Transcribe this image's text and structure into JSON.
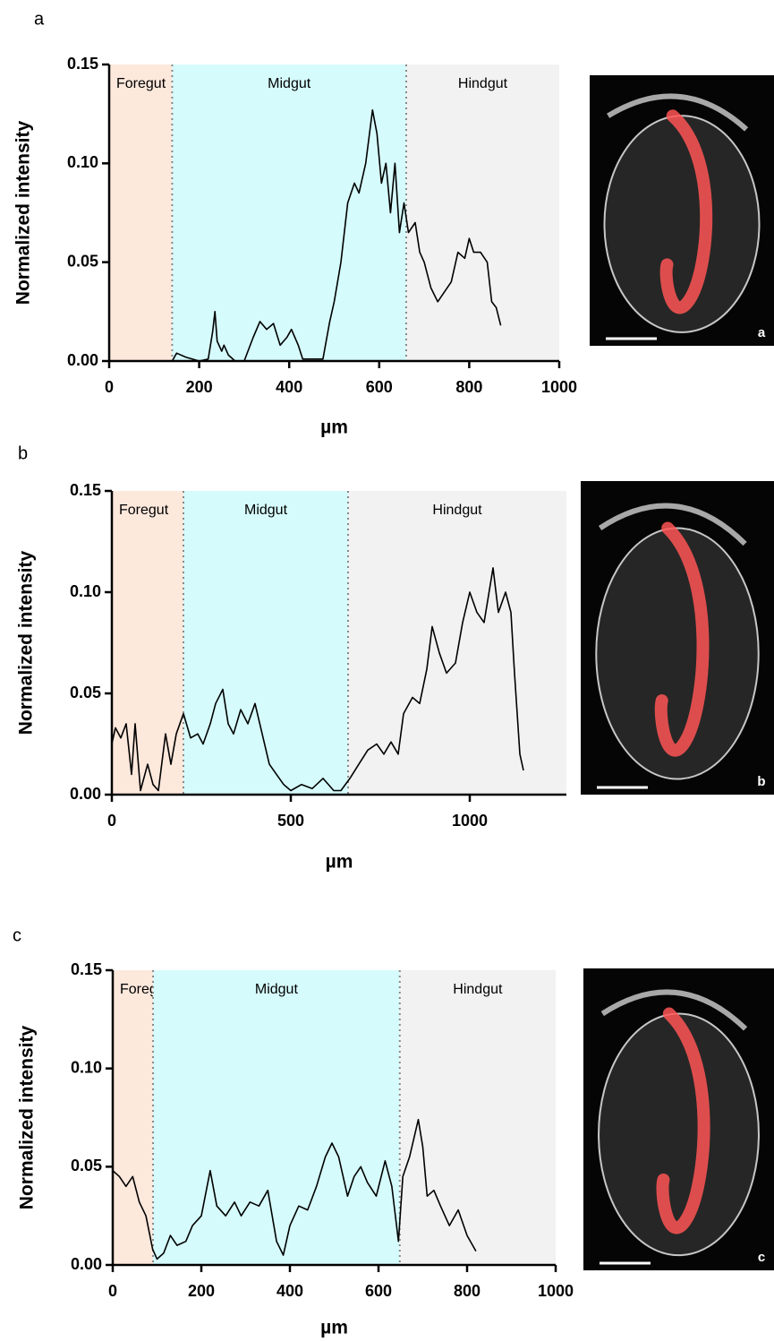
{
  "chart_data": [
    {
      "type": "line",
      "panel_label": "a",
      "image_label": "a",
      "y_label": "Normalized intensity",
      "x_label": "µm",
      "color": "#000000",
      "regions": [
        {
          "label": "Foregut",
          "start": 0,
          "end": 140,
          "color": "#fde8dc"
        },
        {
          "label": "Midgut",
          "start": 140,
          "end": 660,
          "color": "#d6fbfc"
        },
        {
          "label": "Hindgut",
          "start": 660,
          "end": 1000,
          "color": "#f2f2f2"
        }
      ],
      "xlim": [
        0,
        1000
      ],
      "xticks": [
        0,
        200,
        400,
        600,
        800,
        1000
      ],
      "ylim": [
        0,
        0.15
      ],
      "yticks": [
        {
          "value": 0,
          "label": "0.00"
        },
        {
          "value": 0.05,
          "label": "0.05"
        },
        {
          "value": 0.1,
          "label": "0.10"
        },
        {
          "value": 0.15,
          "label": "0.15"
        }
      ],
      "x": [
        140,
        150,
        170,
        200,
        220,
        230,
        235,
        240,
        250,
        255,
        265,
        280,
        300,
        320,
        335,
        350,
        365,
        380,
        395,
        405,
        420,
        430,
        460,
        475,
        490,
        500,
        515,
        530,
        545,
        555,
        570,
        585,
        595,
        605,
        615,
        625,
        635,
        645,
        655,
        665,
        680,
        690,
        700,
        715,
        730,
        745,
        760,
        775,
        790,
        800,
        810,
        825,
        840,
        850,
        860,
        870
      ],
      "values": [
        0,
        0.004,
        0.002,
        0,
        0.001,
        0.015,
        0.025,
        0.01,
        0.005,
        0.008,
        0.003,
        0,
        0,
        0.012,
        0.02,
        0.016,
        0.019,
        0.008,
        0.012,
        0.016,
        0.008,
        0.001,
        0.001,
        0.001,
        0.02,
        0.03,
        0.05,
        0.08,
        0.09,
        0.085,
        0.1,
        0.127,
        0.115,
        0.09,
        0.1,
        0.075,
        0.1,
        0.065,
        0.08,
        0.065,
        0.07,
        0.055,
        0.05,
        0.037,
        0.03,
        0.035,
        0.04,
        0.055,
        0.052,
        0.062,
        0.055,
        0.055,
        0.05,
        0.03,
        0.027,
        0.018
      ]
    },
    {
      "type": "line",
      "panel_label": "b",
      "image_label": "b",
      "y_label": "Normalized intensity",
      "x_label": "µm",
      "color": "#000000",
      "regions": [
        {
          "label": "Foregut",
          "start": 0,
          "end": 200,
          "color": "#fde8dc"
        },
        {
          "label": "Midgut",
          "start": 200,
          "end": 660,
          "color": "#d6fbfc"
        },
        {
          "label": "Hindgut",
          "start": 660,
          "end": 1270,
          "color": "#f2f2f2"
        }
      ],
      "xlim": [
        0,
        1270
      ],
      "xticks": [
        0,
        500,
        1000
      ],
      "ylim": [
        0,
        0.15
      ],
      "yticks": [
        {
          "value": 0,
          "label": "0.00"
        },
        {
          "value": 0.05,
          "label": "0.05"
        },
        {
          "value": 0.1,
          "label": "0.10"
        },
        {
          "value": 0.15,
          "label": "0.15"
        }
      ],
      "x": [
        0,
        10,
        25,
        40,
        55,
        65,
        80,
        100,
        115,
        130,
        150,
        165,
        180,
        200,
        220,
        240,
        255,
        275,
        290,
        310,
        325,
        340,
        360,
        380,
        400,
        420,
        440,
        460,
        480,
        500,
        530,
        560,
        590,
        620,
        640,
        665,
        690,
        715,
        740,
        760,
        780,
        800,
        815,
        840,
        860,
        880,
        895,
        915,
        935,
        960,
        980,
        1000,
        1020,
        1040,
        1065,
        1080,
        1100,
        1115,
        1125,
        1140,
        1150
      ],
      "values": [
        0.025,
        0.033,
        0.028,
        0.035,
        0.01,
        0.035,
        0.002,
        0.015,
        0.005,
        0.002,
        0.03,
        0.015,
        0.03,
        0.04,
        0.028,
        0.03,
        0.025,
        0.035,
        0.045,
        0.052,
        0.035,
        0.03,
        0.042,
        0.035,
        0.045,
        0.03,
        0.015,
        0.01,
        0.005,
        0.002,
        0.005,
        0.003,
        0.008,
        0.002,
        0.002,
        0.008,
        0.015,
        0.022,
        0.025,
        0.02,
        0.026,
        0.02,
        0.04,
        0.048,
        0.045,
        0.062,
        0.083,
        0.07,
        0.06,
        0.065,
        0.085,
        0.1,
        0.09,
        0.085,
        0.112,
        0.09,
        0.1,
        0.09,
        0.06,
        0.02,
        0.012
      ]
    },
    {
      "type": "line",
      "panel_label": "c",
      "image_label": "c",
      "y_label": "Normalized intensity",
      "x_label": "µm",
      "color": "#000000",
      "regions": [
        {
          "label": "Foregut",
          "start": 0,
          "end": 91,
          "color": "#fde8dc"
        },
        {
          "label": "Midgut",
          "start": 91,
          "end": 648,
          "color": "#d6fbfc"
        },
        {
          "label": "Hindgut",
          "start": 648,
          "end": 1000,
          "color": "#f2f2f2"
        }
      ],
      "xlim": [
        0,
        1000
      ],
      "xticks": [
        0,
        200,
        400,
        600,
        800,
        1000
      ],
      "ylim": [
        0,
        0.15
      ],
      "yticks": [
        {
          "value": 0,
          "label": "0.00"
        },
        {
          "value": 0.05,
          "label": "0.05"
        },
        {
          "value": 0.1,
          "label": "0.10"
        },
        {
          "value": 0.15,
          "label": "0.15"
        }
      ],
      "x": [
        0,
        15,
        30,
        45,
        60,
        75,
        90,
        100,
        115,
        130,
        145,
        165,
        180,
        200,
        220,
        235,
        255,
        275,
        290,
        310,
        330,
        350,
        370,
        385,
        400,
        420,
        440,
        460,
        480,
        495,
        510,
        530,
        545,
        560,
        575,
        595,
        615,
        630,
        645,
        655,
        670,
        690,
        700,
        710,
        725,
        740,
        760,
        780,
        800,
        820
      ],
      "values": [
        0.048,
        0.045,
        0.04,
        0.045,
        0.032,
        0.025,
        0.008,
        0.003,
        0.006,
        0.015,
        0.01,
        0.012,
        0.02,
        0.025,
        0.048,
        0.03,
        0.025,
        0.032,
        0.025,
        0.032,
        0.03,
        0.038,
        0.012,
        0.005,
        0.02,
        0.03,
        0.028,
        0.04,
        0.055,
        0.062,
        0.055,
        0.035,
        0.045,
        0.05,
        0.042,
        0.035,
        0.053,
        0.04,
        0.012,
        0.045,
        0.055,
        0.074,
        0.06,
        0.035,
        0.038,
        0.03,
        0.02,
        0.028,
        0.015,
        0.007
      ]
    }
  ]
}
